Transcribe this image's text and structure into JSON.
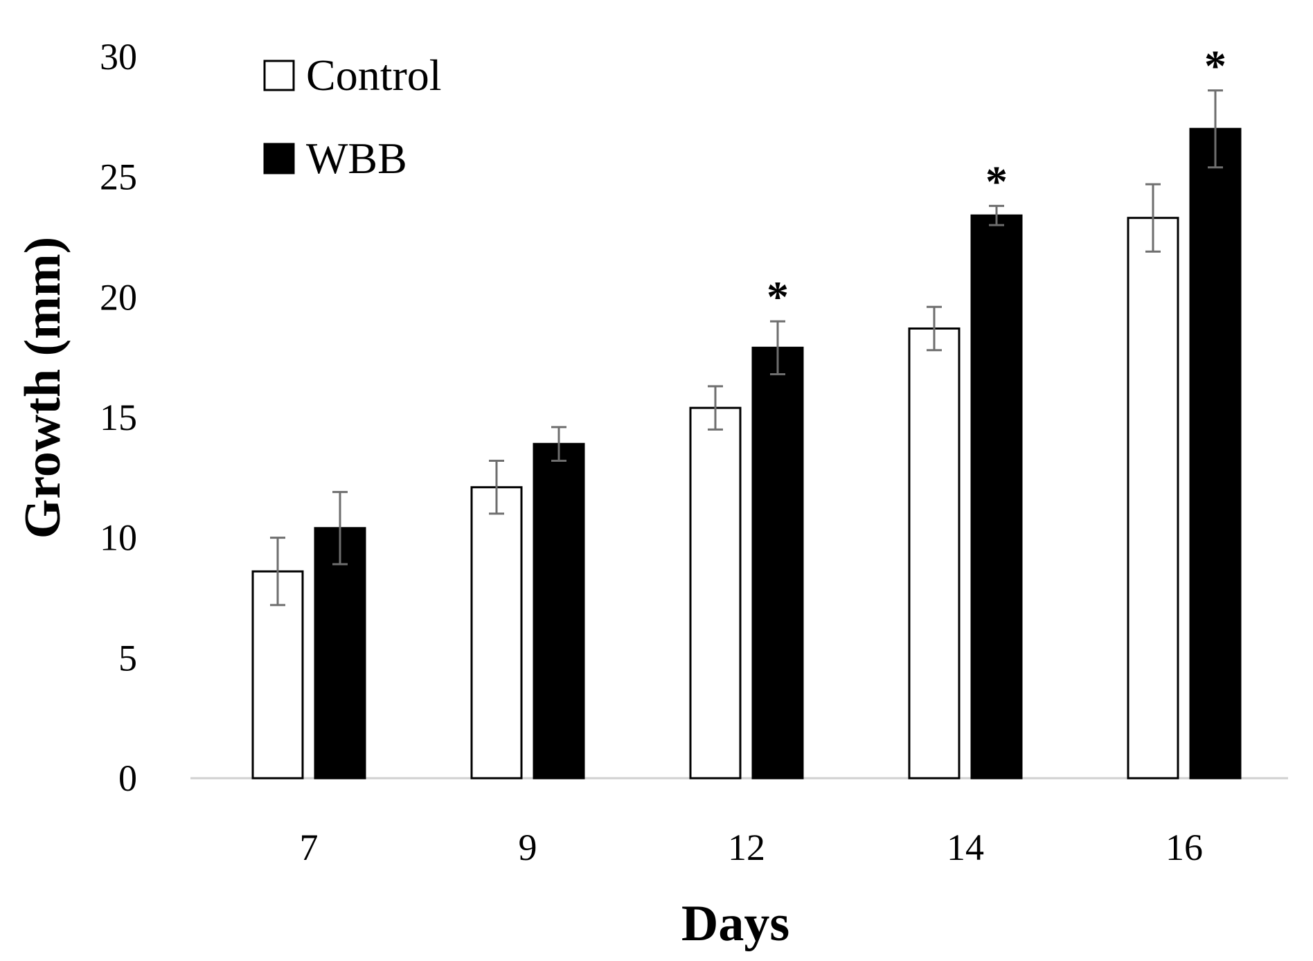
{
  "chart_data": {
    "type": "bar",
    "title": "",
    "xlabel": "Days",
    "ylabel": "Growth (mm)",
    "ylim": [
      0,
      30
    ],
    "yticks": [
      0,
      5,
      10,
      15,
      20,
      25,
      30
    ],
    "grid": false,
    "legend_position": "top-left",
    "categories": [
      "7",
      "9",
      "12",
      "14",
      "16"
    ],
    "series": [
      {
        "name": "Control",
        "color": "#ffffff",
        "values": [
          8.6,
          12.1,
          15.4,
          18.7,
          23.3
        ],
        "errors": [
          1.4,
          1.1,
          0.9,
          0.9,
          1.4
        ]
      },
      {
        "name": "WBB",
        "color": "#000000",
        "values": [
          10.4,
          13.9,
          17.9,
          23.4,
          27.0
        ],
        "errors": [
          1.5,
          0.7,
          1.1,
          0.4,
          1.6
        ]
      }
    ],
    "significance": [
      "",
      "",
      "*",
      "*",
      "*"
    ],
    "colors": {
      "axis": "#d0d0d0",
      "error_bar": "#6e6e6e",
      "text": "#000000"
    }
  }
}
